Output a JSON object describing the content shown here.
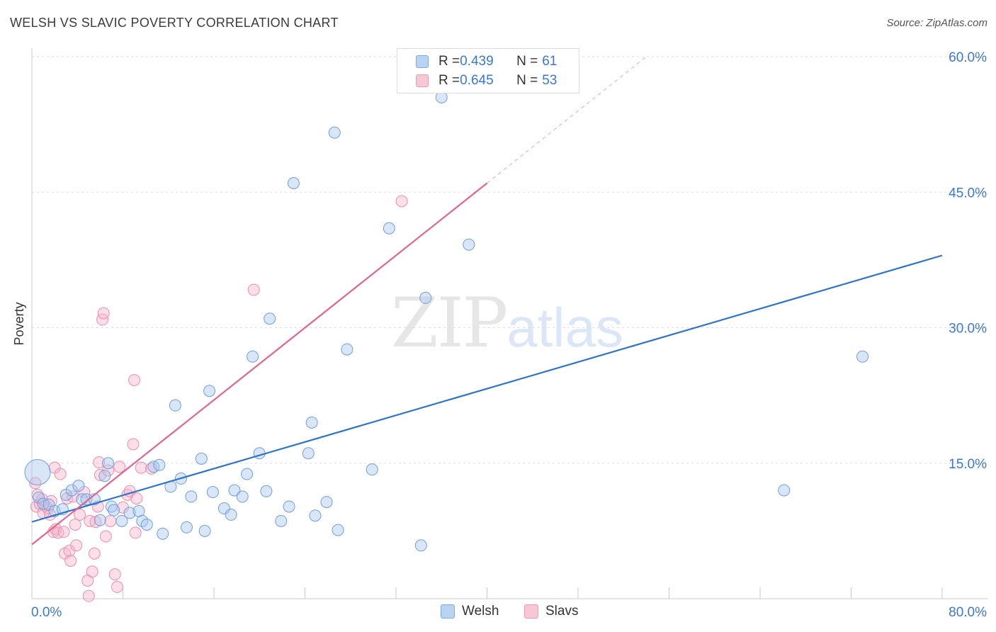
{
  "title": "WELSH VS SLAVIC POVERTY CORRELATION CHART",
  "source": "Source: ZipAtlas.com",
  "watermark": {
    "zip": "ZIP",
    "atlas": "atlas"
  },
  "legend": {
    "welsh": {
      "r_label": "R = ",
      "r_value": "0.439",
      "n_label": "N = ",
      "n_value": "61"
    },
    "slavs": {
      "r_label": "R = ",
      "r_value": "0.645",
      "n_label": "N = ",
      "n_value": "53"
    }
  },
  "colors": {
    "welsh_fill": "#a9c8f0",
    "welsh_stroke": "#6f9fdc",
    "welsh_line": "#2f74cc",
    "slavs_fill": "#f7b6cb",
    "slavs_stroke": "#ea8fae",
    "slavs_line": "#e2658f",
    "tick_label": "#3a78d4",
    "grid": "#dddddd"
  },
  "chart_data": {
    "type": "scatter",
    "title": "WELSH VS SLAVIC POVERTY CORRELATION CHART",
    "xlabel": "",
    "ylabel": "Poverty",
    "xlim": [
      0,
      80
    ],
    "ylim": [
      0,
      60
    ],
    "x_tick_labels": [
      "0.0%",
      "80.0%"
    ],
    "y_ticks": [
      15,
      30,
      45,
      60
    ],
    "y_tick_labels": [
      "15.0%",
      "30.0%",
      "45.0%",
      "60.0%"
    ],
    "grid": true,
    "legend_position": "top-center",
    "series": [
      {
        "name": "Welsh",
        "r": 0.439,
        "n": 61,
        "trend": {
          "x": [
            0,
            80
          ],
          "y": [
            8.5,
            38.0
          ]
        },
        "points": [
          [
            0.5,
            14.0
          ],
          [
            0.6,
            11.2
          ],
          [
            1.0,
            10.5
          ],
          [
            1.5,
            10.4
          ],
          [
            2.0,
            9.7
          ],
          [
            2.7,
            9.9
          ],
          [
            3.0,
            11.5
          ],
          [
            3.5,
            12.0
          ],
          [
            4.1,
            12.5
          ],
          [
            4.4,
            11.0
          ],
          [
            4.8,
            11.0
          ],
          [
            5.5,
            11.0
          ],
          [
            6.0,
            8.7
          ],
          [
            6.4,
            13.6
          ],
          [
            6.7,
            15.0
          ],
          [
            7.0,
            10.2
          ],
          [
            7.2,
            9.8
          ],
          [
            7.9,
            8.6
          ],
          [
            8.6,
            9.5
          ],
          [
            9.4,
            9.7
          ],
          [
            9.7,
            8.6
          ],
          [
            10.1,
            8.2
          ],
          [
            10.7,
            14.6
          ],
          [
            11.2,
            14.8
          ],
          [
            11.5,
            7.2
          ],
          [
            12.2,
            12.4
          ],
          [
            12.6,
            21.4
          ],
          [
            13.1,
            13.3
          ],
          [
            13.6,
            7.9
          ],
          [
            14.0,
            11.3
          ],
          [
            14.9,
            15.5
          ],
          [
            15.2,
            7.5
          ],
          [
            15.6,
            23.0
          ],
          [
            15.9,
            11.8
          ],
          [
            16.9,
            10.0
          ],
          [
            17.5,
            9.3
          ],
          [
            17.8,
            12.0
          ],
          [
            18.5,
            11.3
          ],
          [
            18.9,
            13.8
          ],
          [
            19.4,
            26.8
          ],
          [
            20.0,
            16.1
          ],
          [
            20.6,
            11.9
          ],
          [
            20.9,
            31.0
          ],
          [
            21.9,
            8.6
          ],
          [
            22.6,
            10.2
          ],
          [
            23.0,
            46.0
          ],
          [
            24.3,
            16.1
          ],
          [
            24.6,
            19.5
          ],
          [
            24.9,
            9.2
          ],
          [
            25.9,
            10.7
          ],
          [
            26.6,
            51.6
          ],
          [
            26.9,
            7.6
          ],
          [
            27.7,
            27.6
          ],
          [
            29.9,
            14.3
          ],
          [
            31.4,
            41.0
          ],
          [
            34.2,
            5.9
          ],
          [
            34.6,
            33.3
          ],
          [
            36.0,
            55.5
          ],
          [
            38.4,
            39.2
          ],
          [
            66.1,
            12.0
          ],
          [
            73.0,
            26.8
          ]
        ]
      },
      {
        "name": "Slavs",
        "r": 0.645,
        "n": 53,
        "trend": {
          "x": [
            0,
            40
          ],
          "y": [
            6.0,
            46.0
          ]
        },
        "points": [
          [
            0.3,
            12.8
          ],
          [
            0.4,
            10.2
          ],
          [
            0.5,
            11.5
          ],
          [
            0.7,
            10.5
          ],
          [
            0.9,
            11.0
          ],
          [
            1.0,
            9.5
          ],
          [
            1.2,
            10.3
          ],
          [
            1.4,
            10.0
          ],
          [
            1.6,
            9.3
          ],
          [
            1.7,
            10.8
          ],
          [
            1.9,
            7.4
          ],
          [
            2.0,
            14.5
          ],
          [
            2.1,
            7.7
          ],
          [
            2.3,
            7.3
          ],
          [
            2.5,
            13.8
          ],
          [
            2.8,
            7.4
          ],
          [
            2.9,
            5.0
          ],
          [
            3.1,
            11.1
          ],
          [
            3.3,
            5.3
          ],
          [
            3.4,
            4.2
          ],
          [
            3.6,
            11.3
          ],
          [
            3.8,
            8.2
          ],
          [
            3.9,
            5.9
          ],
          [
            4.2,
            9.3
          ],
          [
            4.6,
            11.8
          ],
          [
            4.9,
            2.0
          ],
          [
            5.0,
            0.3
          ],
          [
            5.1,
            8.6
          ],
          [
            5.3,
            3.0
          ],
          [
            5.5,
            5.0
          ],
          [
            5.6,
            8.5
          ],
          [
            5.8,
            10.2
          ],
          [
            5.9,
            15.1
          ],
          [
            6.0,
            13.7
          ],
          [
            6.2,
            30.9
          ],
          [
            6.3,
            31.6
          ],
          [
            6.5,
            6.9
          ],
          [
            6.7,
            14.2
          ],
          [
            6.9,
            8.6
          ],
          [
            7.3,
            2.7
          ],
          [
            7.5,
            1.3
          ],
          [
            7.7,
            14.6
          ],
          [
            8.0,
            10.1
          ],
          [
            8.4,
            11.5
          ],
          [
            8.6,
            11.9
          ],
          [
            8.9,
            17.1
          ],
          [
            9.0,
            24.2
          ],
          [
            9.1,
            7.3
          ],
          [
            9.2,
            11.1
          ],
          [
            9.6,
            14.5
          ],
          [
            10.5,
            14.4
          ],
          [
            19.5,
            34.2
          ],
          [
            32.5,
            44.0
          ]
        ]
      }
    ]
  },
  "bottom_legend": {
    "welsh": "Welsh",
    "slavs": "Slavs"
  }
}
